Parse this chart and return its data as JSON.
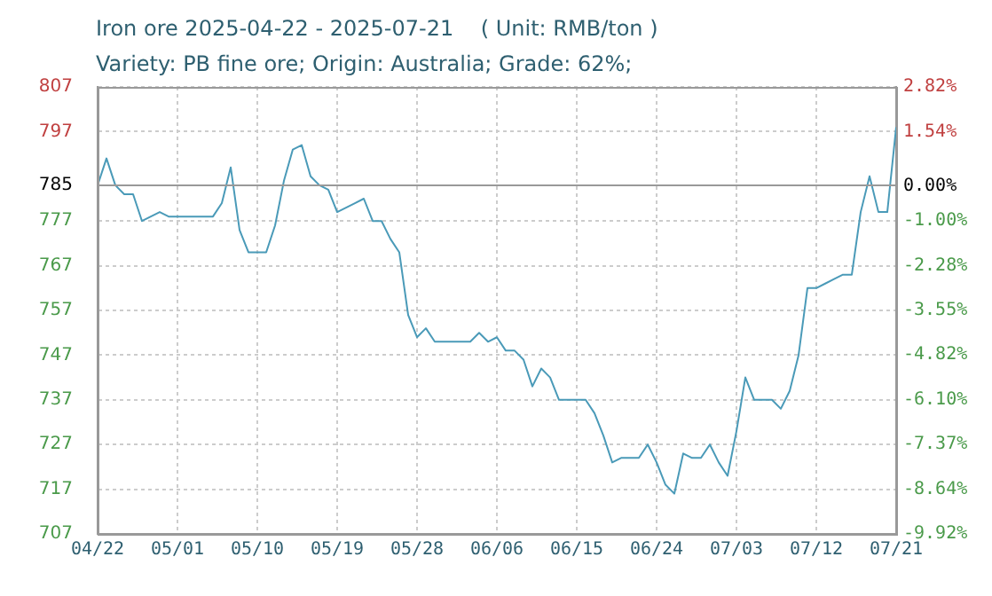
{
  "chart_data": {
    "type": "line",
    "title": "Iron ore 2025-04-22 - 2025-07-21    ( Unit: RMB/ton )",
    "subtitle": "Variety: PB fine ore; Origin: Australia; Grade: 62%;",
    "x": [
      "2025-04-22",
      "2025-04-23",
      "2025-04-24",
      "2025-04-25",
      "2025-04-26",
      "2025-04-27",
      "2025-04-28",
      "2025-04-29",
      "2025-04-30",
      "2025-05-05",
      "2025-05-06",
      "2025-05-07",
      "2025-05-08",
      "2025-05-09",
      "2025-05-11",
      "2025-05-12",
      "2025-05-13",
      "2025-05-14",
      "2025-05-15",
      "2025-05-16",
      "2025-05-17",
      "2025-05-18",
      "2025-05-19",
      "2025-05-20",
      "2025-05-21",
      "2025-05-22",
      "2025-05-23",
      "2025-05-24",
      "2025-05-25",
      "2025-05-26",
      "2025-05-27",
      "2025-05-28",
      "2025-05-29",
      "2025-05-30",
      "2025-06-03",
      "2025-06-04",
      "2025-06-05",
      "2025-06-06",
      "2025-06-07",
      "2025-06-08",
      "2025-06-09",
      "2025-06-10",
      "2025-06-11",
      "2025-06-12",
      "2025-06-13",
      "2025-06-14",
      "2025-06-15",
      "2025-06-16",
      "2025-06-17",
      "2025-06-18",
      "2025-06-19",
      "2025-06-20",
      "2025-06-21",
      "2025-06-22",
      "2025-06-23",
      "2025-06-24",
      "2025-06-25",
      "2025-06-26",
      "2025-06-27",
      "2025-06-28",
      "2025-06-29",
      "2025-06-30",
      "2025-07-01",
      "2025-07-02",
      "2025-07-03",
      "2025-07-04",
      "2025-07-05",
      "2025-07-06",
      "2025-07-07",
      "2025-07-08",
      "2025-07-09",
      "2025-07-10",
      "2025-07-11",
      "2025-07-12",
      "2025-07-13",
      "2025-07-14",
      "2025-07-15",
      "2025-07-16",
      "2025-07-17",
      "2025-07-18",
      "2025-07-19",
      "2025-07-20",
      "2025-07-21"
    ],
    "series": [
      {
        "color": "#4a9ab8",
        "values": [
          785,
          791,
          785,
          783,
          783,
          777,
          778,
          779,
          778,
          778,
          781,
          789,
          775,
          770,
          770,
          776,
          786,
          793,
          794,
          787,
          785,
          784,
          779,
          780,
          781,
          782,
          777,
          777,
          773,
          770,
          756,
          751,
          753,
          750,
          750,
          752,
          750,
          751,
          748,
          748,
          746,
          740,
          744,
          742,
          737,
          737,
          737,
          737,
          734,
          729,
          723,
          724,
          724,
          724,
          727,
          723,
          718,
          716,
          725,
          724,
          724,
          727,
          723,
          720,
          730,
          742,
          737,
          737,
          737,
          735,
          739,
          747,
          762,
          762,
          763,
          764,
          765,
          765,
          779,
          787,
          779,
          779,
          798
        ]
      }
    ],
    "xlim": [
      "2025-04-22",
      "2025-07-21"
    ],
    "xticks": [
      {
        "value": "2025-04-22",
        "label": "04/22"
      },
      {
        "value": "2025-05-01",
        "label": "05/01"
      },
      {
        "value": "2025-05-10",
        "label": "05/10"
      },
      {
        "value": "2025-05-19",
        "label": "05/19"
      },
      {
        "value": "2025-05-28",
        "label": "05/28"
      },
      {
        "value": "2025-06-06",
        "label": "06/06"
      },
      {
        "value": "2025-06-15",
        "label": "06/15"
      },
      {
        "value": "2025-06-24",
        "label": "06/24"
      },
      {
        "value": "2025-07-03",
        "label": "07/03"
      },
      {
        "value": "2025-07-12",
        "label": "07/12"
      },
      {
        "value": "2025-07-21",
        "label": "07/21"
      }
    ],
    "ylim": [
      707,
      807
    ],
    "yticks": [
      707,
      717,
      727,
      737,
      747,
      757,
      767,
      777,
      785,
      797,
      807
    ],
    "y2lim": [
      -9.92,
      2.82
    ],
    "y2ticks": [
      {
        "value": -9.92,
        "label": "-9.92%"
      },
      {
        "value": -8.64,
        "label": "-8.64%"
      },
      {
        "value": -7.37,
        "label": "-7.37%"
      },
      {
        "value": -6.1,
        "label": "-6.10%"
      },
      {
        "value": -4.82,
        "label": "-4.82%"
      },
      {
        "value": -3.55,
        "label": "-3.55%"
      },
      {
        "value": -2.28,
        "label": "-2.28%"
      },
      {
        "value": -1.0,
        "label": "-1.00%"
      },
      {
        "value": 0,
        "label": "0.00%"
      },
      {
        "value": 1.54,
        "label": "1.54%"
      },
      {
        "value": 2.82,
        "label": "2.82%"
      }
    ],
    "ref_lines": [
      {
        "axis": "y",
        "value": 785,
        "color": "#999999"
      }
    ],
    "grid": true,
    "legend": false,
    "marker": "none",
    "line_style": "solid"
  }
}
